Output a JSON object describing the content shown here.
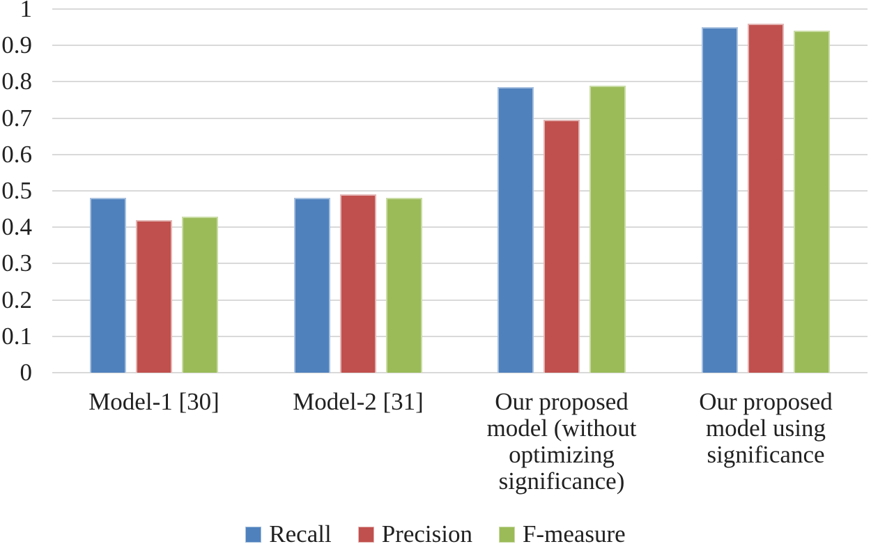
{
  "chart_data": {
    "type": "bar",
    "categories": [
      "Model-1 [30]",
      "Model-2 [31]",
      "Our proposed model (without optimizing significance)",
      "Our proposed model using significance"
    ],
    "series": [
      {
        "name": "Recall",
        "color": "#4F81BD",
        "border_color": "#a7c0de",
        "values": [
          0.48,
          0.48,
          0.785,
          0.95
        ]
      },
      {
        "name": "Precision",
        "color": "#C0504D",
        "border_color": "#e3b5b4",
        "values": [
          0.42,
          0.49,
          0.695,
          0.96
        ]
      },
      {
        "name": "F-measure",
        "color": "#9BBB59",
        "border_color": "#cadca6",
        "values": [
          0.43,
          0.48,
          0.79,
          0.94
        ]
      }
    ],
    "title": "",
    "xlabel": "",
    "ylabel": "",
    "ylim": [
      0,
      1
    ],
    "ytick_step": 0.1,
    "ytick_labels": [
      "0",
      "0.1",
      "0.2",
      "0.3",
      "0.4",
      "0.5",
      "0.6",
      "0.7",
      "0.8",
      "0.9",
      "1"
    ],
    "grid": true,
    "gridline_color": "#d9d9d9",
    "legend_position": "bottom"
  }
}
